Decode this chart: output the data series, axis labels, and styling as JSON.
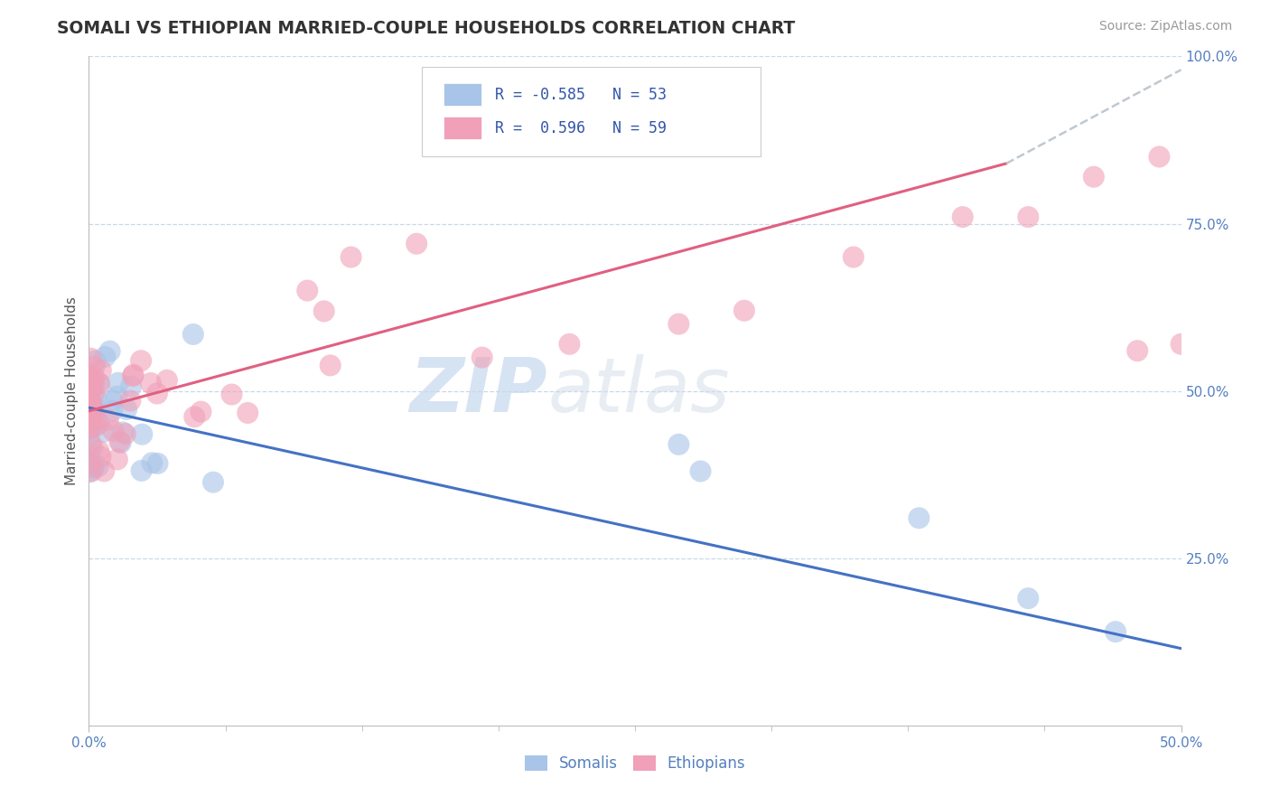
{
  "title": "SOMALI VS ETHIOPIAN MARRIED-COUPLE HOUSEHOLDS CORRELATION CHART",
  "source": "Source: ZipAtlas.com",
  "ylabel": "Married-couple Households",
  "somali_R": -0.585,
  "somali_N": 53,
  "ethiopian_R": 0.596,
  "ethiopian_N": 59,
  "somali_color": "#a8c4e8",
  "ethiopian_color": "#f0a0b8",
  "somali_line_color": "#4472c4",
  "ethiopian_line_color": "#e06080",
  "trend_extend_color": "#c0c8d0",
  "background_color": "#ffffff",
  "grid_color": "#c8d8e8",
  "xlim": [
    0.0,
    0.5
  ],
  "ylim": [
    0.0,
    1.0
  ],
  "som_line_x0": 0.0,
  "som_line_y0": 0.475,
  "som_line_x1": 0.5,
  "som_line_y1": 0.115,
  "eth_line_x0": 0.0,
  "eth_line_y0": 0.47,
  "eth_line_solid_x1": 0.42,
  "eth_line_y1": 0.84,
  "eth_line_dash_x1": 0.5,
  "eth_line_dash_y1": 0.98
}
